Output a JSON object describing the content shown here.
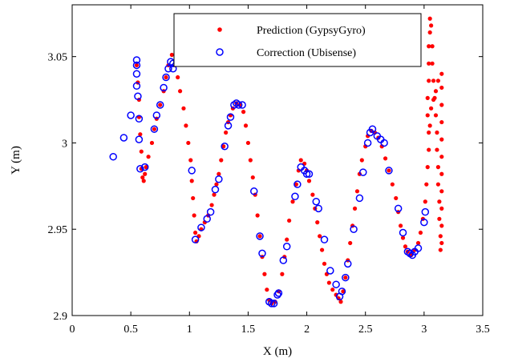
{
  "chart_data": {
    "type": "scatter",
    "title": "",
    "xlabel": "X (m)",
    "ylabel": "Y (m)",
    "xlim": [
      0,
      3.5
    ],
    "ylim": [
      2.9,
      3.08
    ],
    "xticks": [
      0,
      0.5,
      1,
      1.5,
      2,
      2.5,
      3,
      3.5
    ],
    "xtick_labels": [
      "0",
      "0.5",
      "1",
      "1.5",
      "2",
      "2.5",
      "3",
      "3.5"
    ],
    "yticks": [
      2.9,
      2.95,
      3.0,
      3.05
    ],
    "ytick_labels": [
      "2.9",
      "2.95",
      "3",
      "3.05"
    ],
    "grid": false,
    "legend_position": "top-center",
    "colors": {
      "prediction": "#ff0000",
      "correction": "#0000ff"
    },
    "series": [
      {
        "name": "Prediction (GypsyGyro)",
        "marker": "filled-dot",
        "points": [
          [
            0.55,
            3.045
          ],
          [
            0.56,
            3.035
          ],
          [
            0.57,
            3.025
          ],
          [
            0.57,
            3.015
          ],
          [
            0.58,
            3.005
          ],
          [
            0.59,
            2.995
          ],
          [
            0.59,
            2.985
          ],
          [
            0.6,
            2.98
          ],
          [
            0.61,
            2.978
          ],
          [
            0.62,
            2.982
          ],
          [
            0.63,
            2.986
          ],
          [
            0.65,
            2.992
          ],
          [
            0.68,
            3.0
          ],
          [
            0.7,
            3.008
          ],
          [
            0.72,
            3.014
          ],
          [
            0.75,
            3.022
          ],
          [
            0.78,
            3.03
          ],
          [
            0.8,
            3.038
          ],
          [
            0.82,
            3.045
          ],
          [
            0.85,
            3.051
          ],
          [
            0.88,
            3.045
          ],
          [
            0.9,
            3.038
          ],
          [
            0.92,
            3.03
          ],
          [
            0.95,
            3.02
          ],
          [
            0.97,
            3.01
          ],
          [
            0.99,
            3.0
          ],
          [
            1.01,
            2.99
          ],
          [
            1.02,
            2.978
          ],
          [
            1.03,
            2.968
          ],
          [
            1.04,
            2.958
          ],
          [
            1.05,
            2.948
          ],
          [
            1.06,
            2.943
          ],
          [
            1.08,
            2.946
          ],
          [
            1.1,
            2.95
          ],
          [
            1.13,
            2.954
          ],
          [
            1.16,
            2.958
          ],
          [
            1.19,
            2.964
          ],
          [
            1.21,
            2.97
          ],
          [
            1.23,
            2.976
          ],
          [
            1.25,
            2.982
          ],
          [
            1.27,
            2.99
          ],
          [
            1.29,
            2.998
          ],
          [
            1.31,
            3.006
          ],
          [
            1.33,
            3.012
          ],
          [
            1.35,
            3.016
          ],
          [
            1.37,
            3.02
          ],
          [
            1.4,
            3.023
          ],
          [
            1.43,
            3.022
          ],
          [
            1.46,
            3.018
          ],
          [
            1.48,
            3.01
          ],
          [
            1.5,
            3.0
          ],
          [
            1.52,
            2.99
          ],
          [
            1.54,
            2.98
          ],
          [
            1.56,
            2.97
          ],
          [
            1.58,
            2.958
          ],
          [
            1.6,
            2.946
          ],
          [
            1.62,
            2.934
          ],
          [
            1.64,
            2.924
          ],
          [
            1.66,
            2.915
          ],
          [
            1.68,
            2.909
          ],
          [
            1.7,
            2.907
          ],
          [
            1.73,
            2.908
          ],
          [
            1.76,
            2.914
          ],
          [
            1.79,
            2.924
          ],
          [
            1.81,
            2.934
          ],
          [
            1.83,
            2.944
          ],
          [
            1.85,
            2.955
          ],
          [
            1.88,
            2.966
          ],
          [
            1.91,
            2.976
          ],
          [
            1.93,
            2.984
          ],
          [
            1.95,
            2.99
          ],
          [
            1.98,
            2.988
          ],
          [
            2.0,
            2.984
          ],
          [
            2.02,
            2.978
          ],
          [
            2.05,
            2.97
          ],
          [
            2.07,
            2.962
          ],
          [
            2.09,
            2.954
          ],
          [
            2.11,
            2.946
          ],
          [
            2.13,
            2.938
          ],
          [
            2.15,
            2.93
          ],
          [
            2.17,
            2.924
          ],
          [
            2.19,
            2.919
          ],
          [
            2.22,
            2.915
          ],
          [
            2.25,
            2.912
          ],
          [
            2.27,
            2.91
          ],
          [
            2.29,
            2.908
          ],
          [
            2.31,
            2.914
          ],
          [
            2.33,
            2.922
          ],
          [
            2.35,
            2.932
          ],
          [
            2.37,
            2.942
          ],
          [
            2.39,
            2.952
          ],
          [
            2.41,
            2.962
          ],
          [
            2.43,
            2.972
          ],
          [
            2.45,
            2.982
          ],
          [
            2.47,
            2.99
          ],
          [
            2.5,
            2.998
          ],
          [
            2.52,
            3.004
          ],
          [
            2.55,
            3.007
          ],
          [
            2.58,
            3.006
          ],
          [
            2.61,
            3.003
          ],
          [
            2.64,
            2.998
          ],
          [
            2.67,
            2.991
          ],
          [
            2.7,
            2.984
          ],
          [
            2.73,
            2.976
          ],
          [
            2.76,
            2.968
          ],
          [
            2.78,
            2.96
          ],
          [
            2.8,
            2.952
          ],
          [
            2.82,
            2.945
          ],
          [
            2.84,
            2.94
          ],
          [
            2.86,
            2.937
          ],
          [
            2.89,
            2.935
          ],
          [
            2.92,
            2.938
          ],
          [
            2.95,
            2.942
          ],
          [
            2.97,
            2.948
          ],
          [
            2.99,
            2.956
          ],
          [
            3.01,
            2.966
          ],
          [
            3.02,
            2.976
          ],
          [
            3.03,
            2.986
          ],
          [
            3.04,
            2.996
          ],
          [
            3.04,
            3.006
          ],
          [
            3.03,
            3.016
          ],
          [
            3.03,
            3.026
          ],
          [
            3.04,
            3.036
          ],
          [
            3.04,
            3.046
          ],
          [
            3.04,
            3.056
          ],
          [
            3.05,
            3.064
          ],
          [
            3.05,
            3.072
          ],
          [
            3.06,
            3.068
          ],
          [
            3.07,
            3.056
          ],
          [
            3.07,
            3.046
          ],
          [
            3.08,
            3.036
          ],
          [
            3.09,
            3.026
          ],
          [
            3.1,
            3.016
          ],
          [
            3.11,
            3.006
          ],
          [
            3.11,
            2.996
          ],
          [
            3.12,
            2.986
          ],
          [
            3.12,
            2.976
          ],
          [
            3.13,
            2.966
          ],
          [
            3.13,
            2.956
          ],
          [
            3.14,
            2.946
          ],
          [
            3.14,
            2.938
          ],
          [
            3.15,
            2.942
          ],
          [
            3.15,
            2.952
          ],
          [
            3.15,
            2.962
          ],
          [
            3.15,
            2.972
          ],
          [
            3.15,
            2.982
          ],
          [
            3.15,
            2.992
          ],
          [
            3.15,
            3.002
          ],
          [
            3.15,
            3.012
          ],
          [
            3.15,
            3.022
          ],
          [
            3.15,
            3.032
          ],
          [
            3.15,
            3.04
          ],
          [
            3.12,
            3.036
          ],
          [
            3.1,
            3.03
          ],
          [
            3.08,
            3.025
          ],
          [
            3.06,
            3.02
          ],
          [
            3.05,
            3.01
          ]
        ]
      },
      {
        "name": "Correction (Ubisense)",
        "marker": "open-circle",
        "points": [
          [
            0.35,
            2.992
          ],
          [
            0.44,
            3.003
          ],
          [
            0.5,
            3.016
          ],
          [
            0.55,
            3.048
          ],
          [
            0.55,
            3.045
          ],
          [
            0.55,
            3.04
          ],
          [
            0.55,
            3.033
          ],
          [
            0.56,
            3.027
          ],
          [
            0.57,
            3.014
          ],
          [
            0.57,
            3.002
          ],
          [
            0.58,
            2.985
          ],
          [
            0.62,
            2.986
          ],
          [
            0.7,
            3.008
          ],
          [
            0.72,
            3.016
          ],
          [
            0.75,
            3.022
          ],
          [
            0.78,
            3.032
          ],
          [
            0.8,
            3.038
          ],
          [
            0.82,
            3.043
          ],
          [
            0.84,
            3.047
          ],
          [
            0.86,
            3.046
          ],
          [
            0.86,
            3.043
          ],
          [
            1.02,
            2.984
          ],
          [
            1.05,
            2.944
          ],
          [
            1.1,
            2.951
          ],
          [
            1.15,
            2.956
          ],
          [
            1.18,
            2.96
          ],
          [
            1.22,
            2.973
          ],
          [
            1.25,
            2.979
          ],
          [
            1.3,
            2.998
          ],
          [
            1.33,
            3.01
          ],
          [
            1.35,
            3.015
          ],
          [
            1.38,
            3.022
          ],
          [
            1.4,
            3.023
          ],
          [
            1.42,
            3.022
          ],
          [
            1.45,
            3.022
          ],
          [
            1.55,
            2.972
          ],
          [
            1.6,
            2.946
          ],
          [
            1.62,
            2.936
          ],
          [
            1.68,
            2.908
          ],
          [
            1.7,
            2.907
          ],
          [
            1.72,
            2.907
          ],
          [
            1.75,
            2.912
          ],
          [
            1.76,
            2.913
          ],
          [
            1.8,
            2.932
          ],
          [
            1.83,
            2.94
          ],
          [
            1.9,
            2.969
          ],
          [
            1.92,
            2.976
          ],
          [
            1.95,
            2.986
          ],
          [
            1.98,
            2.984
          ],
          [
            2.0,
            2.982
          ],
          [
            2.02,
            2.982
          ],
          [
            2.08,
            2.966
          ],
          [
            2.1,
            2.962
          ],
          [
            2.15,
            2.944
          ],
          [
            2.2,
            2.926
          ],
          [
            2.25,
            2.918
          ],
          [
            2.28,
            2.911
          ],
          [
            2.3,
            2.914
          ],
          [
            2.33,
            2.922
          ],
          [
            2.35,
            2.93
          ],
          [
            2.4,
            2.95
          ],
          [
            2.45,
            2.968
          ],
          [
            2.48,
            2.983
          ],
          [
            2.52,
            3.0
          ],
          [
            2.54,
            3.006
          ],
          [
            2.56,
            3.008
          ],
          [
            2.6,
            3.004
          ],
          [
            2.63,
            3.002
          ],
          [
            2.66,
            3.0
          ],
          [
            2.7,
            2.984
          ],
          [
            2.78,
            2.962
          ],
          [
            2.82,
            2.948
          ],
          [
            2.86,
            2.937
          ],
          [
            2.88,
            2.936
          ],
          [
            2.9,
            2.935
          ],
          [
            2.92,
            2.937
          ],
          [
            2.95,
            2.939
          ],
          [
            3.0,
            2.954
          ],
          [
            3.01,
            2.96
          ]
        ]
      }
    ]
  }
}
